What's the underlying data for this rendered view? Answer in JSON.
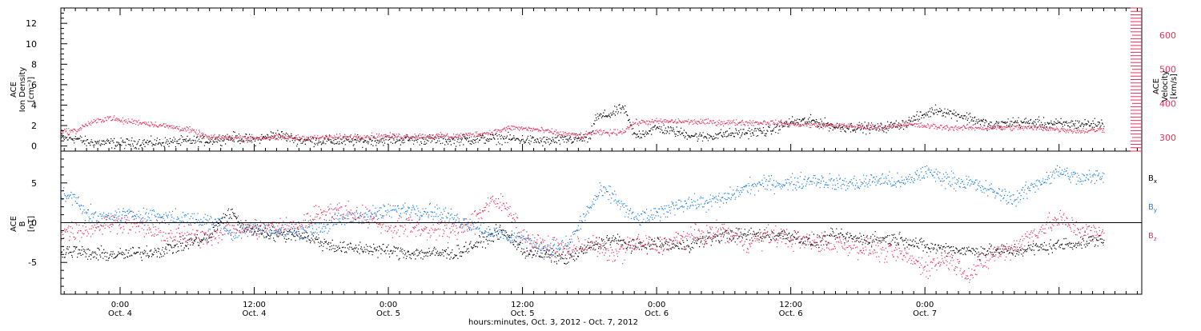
{
  "colors": {
    "black": "#000000",
    "blue": "#1f7fe0",
    "pink": "#e8325a",
    "axis": "#000000"
  },
  "chart_data": [
    {
      "type": "scatter",
      "panel": "top",
      "ylabel_left": [
        "ACE",
        "Ion Density",
        "[cm⁻³]"
      ],
      "ylabel_right": [
        "ACE",
        "Velocity",
        "[km/s]"
      ],
      "y_left_ticks": [
        0,
        2,
        4,
        6,
        8,
        10,
        12
      ],
      "y_left_tick_labels": [
        "0",
        "2",
        "4",
        "6",
        "8",
        "10",
        "12"
      ],
      "ylim_left": [
        -0.5,
        13.5
      ],
      "y_right_ticks": [
        300,
        400,
        500,
        600
      ],
      "y_right_tick_labels": [
        "300",
        "400",
        "500",
        "600"
      ],
      "ylim_right": [
        260,
        680
      ],
      "series": [
        {
          "color": "black",
          "axis": "left",
          "knots": [
            [
              -4,
              0.8
            ],
            [
              -3,
              0.4
            ],
            [
              0,
              0.3
            ],
            [
              4,
              0.4
            ],
            [
              8,
              0.6
            ],
            [
              10,
              0.9
            ],
            [
              12,
              0.6
            ],
            [
              14,
              1.2
            ],
            [
              16,
              0.6
            ],
            [
              20,
              0.5
            ],
            [
              26,
              0.7
            ],
            [
              30,
              0.6
            ],
            [
              34,
              0.8
            ],
            [
              38,
              0.5
            ],
            [
              42,
              0.8
            ],
            [
              42.5,
              2.8
            ],
            [
              44,
              3.2
            ],
            [
              45,
              3.8
            ],
            [
              46,
              1.0
            ],
            [
              48,
              1.8
            ],
            [
              52,
              0.9
            ],
            [
              54,
              1.2
            ],
            [
              58,
              1.5
            ],
            [
              60,
              2.4
            ],
            [
              62,
              2.5
            ],
            [
              64,
              1.9
            ],
            [
              68,
              1.8
            ],
            [
              70,
              2.2
            ],
            [
              73,
              3.6
            ],
            [
              76,
              2.8
            ],
            [
              78,
              2.0
            ],
            [
              80,
              2.4
            ],
            [
              84,
              2.2
            ],
            [
              88,
              2.2
            ]
          ],
          "spread": 0.35
        },
        {
          "color": "pink",
          "axis": "right",
          "knots": [
            [
              -4,
              320
            ],
            [
              -3,
              340
            ],
            [
              -1,
              360
            ],
            [
              0,
              350
            ],
            [
              2,
              345
            ],
            [
              4,
              335
            ],
            [
              6,
              325
            ],
            [
              8,
              300
            ],
            [
              10,
              300
            ],
            [
              14,
              300
            ],
            [
              18,
              300
            ],
            [
              22,
              305
            ],
            [
              26,
              305
            ],
            [
              30,
              305
            ],
            [
              33,
              315
            ],
            [
              35,
              330
            ],
            [
              37,
              325
            ],
            [
              40,
              310
            ],
            [
              41.5,
              305
            ],
            [
              42,
              315
            ],
            [
              44,
              315
            ],
            [
              45,
              320
            ],
            [
              46,
              345
            ],
            [
              48,
              348
            ],
            [
              50,
              348
            ],
            [
              54,
              345
            ],
            [
              58,
              345
            ],
            [
              60,
              340
            ],
            [
              64,
              335
            ],
            [
              68,
              330
            ],
            [
              70,
              340
            ],
            [
              74,
              330
            ],
            [
              78,
              330
            ],
            [
              82,
              330
            ],
            [
              86,
              320
            ],
            [
              88,
              325
            ]
          ],
          "spread": 6
        }
      ]
    },
    {
      "type": "scatter",
      "panel": "bottom",
      "ylabel_left": [
        "ACE",
        "B",
        "[nT]"
      ],
      "y_left_ticks": [
        -5,
        0,
        5
      ],
      "y_left_tick_labels": [
        "-5",
        "0",
        "5"
      ],
      "ylim_left": [
        -9,
        9
      ],
      "zero_line": true,
      "legend": [
        {
          "label": "B",
          "sub": "x",
          "color": "black"
        },
        {
          "label": "B",
          "sub": "y",
          "color": "blue"
        },
        {
          "label": "B",
          "sub": "z",
          "color": "pink"
        }
      ],
      "series": [
        {
          "color": "black",
          "name": "Bx",
          "knots": [
            [
              -4,
              -3.5
            ],
            [
              -3,
              -3.9
            ],
            [
              0,
              -4.0
            ],
            [
              4,
              -3.4
            ],
            [
              6,
              -2.5
            ],
            [
              8,
              -1.8
            ],
            [
              9,
              0.5
            ],
            [
              10,
              1.2
            ],
            [
              11,
              -0.5
            ],
            [
              12,
              -0.8
            ],
            [
              14,
              -1.5
            ],
            [
              16,
              -1.3
            ],
            [
              18,
              -2.5
            ],
            [
              20,
              -3.2
            ],
            [
              22,
              -3.2
            ],
            [
              26,
              -3.8
            ],
            [
              30,
              -3.8
            ],
            [
              32,
              -2.5
            ],
            [
              34,
              -1.0
            ],
            [
              35,
              -2.0
            ],
            [
              36,
              -3.5
            ],
            [
              38,
              -4.0
            ],
            [
              40,
              -4.5
            ],
            [
              42,
              -3.0
            ],
            [
              44,
              -2.0
            ],
            [
              46,
              -3.0
            ],
            [
              48,
              -2.5
            ],
            [
              50,
              -3.0
            ],
            [
              54,
              -1.5
            ],
            [
              58,
              -1.5
            ],
            [
              60,
              -1.5
            ],
            [
              62,
              -2.5
            ],
            [
              64,
              -1.5
            ],
            [
              66,
              -2.0
            ],
            [
              68,
              -2.0
            ],
            [
              70,
              -2.0
            ],
            [
              72,
              -3.0
            ],
            [
              76,
              -3.5
            ],
            [
              80,
              -3.5
            ],
            [
              84,
              -2.8
            ],
            [
              88,
              -2.0
            ]
          ],
          "spread": 0.6
        },
        {
          "color": "blue",
          "name": "By",
          "knots": [
            [
              -4,
              3.3
            ],
            [
              -3,
              1.2
            ],
            [
              -2,
              0.5
            ],
            [
              0,
              1.0
            ],
            [
              2,
              1.0
            ],
            [
              4,
              0.8
            ],
            [
              6,
              0.5
            ],
            [
              8,
              0.2
            ],
            [
              9,
              0.0
            ],
            [
              10,
              -1.5
            ],
            [
              12,
              -0.5
            ],
            [
              14,
              -1.0
            ],
            [
              16,
              -1.0
            ],
            [
              18,
              -0.5
            ],
            [
              20,
              0.5
            ],
            [
              22,
              1.0
            ],
            [
              24,
              1.5
            ],
            [
              26,
              1.8
            ],
            [
              28,
              1.5
            ],
            [
              30,
              0.5
            ],
            [
              32,
              -0.5
            ],
            [
              34,
              -1.5
            ],
            [
              36,
              -2.0
            ],
            [
              38,
              -3.0
            ],
            [
              40,
              -2.8
            ],
            [
              42,
              2.0
            ],
            [
              43,
              4.0
            ],
            [
              44,
              3.5
            ],
            [
              46,
              0.5
            ],
            [
              48,
              1.0
            ],
            [
              50,
              2.5
            ],
            [
              52,
              2.5
            ],
            [
              54,
              3.0
            ],
            [
              56,
              4.5
            ],
            [
              58,
              5.0
            ],
            [
              60,
              5.0
            ],
            [
              62,
              5.5
            ],
            [
              64,
              5.0
            ],
            [
              66,
              5.0
            ],
            [
              68,
              5.5
            ],
            [
              70,
              5.0
            ],
            [
              72,
              6.5
            ],
            [
              74,
              5.5
            ],
            [
              76,
              5.0
            ],
            [
              78,
              4.0
            ],
            [
              80,
              3.0
            ],
            [
              82,
              5.0
            ],
            [
              84,
              6.5
            ],
            [
              86,
              5.5
            ],
            [
              88,
              6.0
            ]
          ],
          "spread": 0.7
        },
        {
          "color": "pink",
          "name": "Bz",
          "knots": [
            [
              -4,
              -1.0
            ],
            [
              -2,
              -0.3
            ],
            [
              0,
              0.3
            ],
            [
              2,
              -0.5
            ],
            [
              4,
              -1.5
            ],
            [
              6,
              -1.8
            ],
            [
              8,
              -1.5
            ],
            [
              10,
              -0.5
            ],
            [
              12,
              -0.8
            ],
            [
              14,
              -0.5
            ],
            [
              16,
              -0.3
            ],
            [
              18,
              1.5
            ],
            [
              20,
              1.5
            ],
            [
              22,
              0.8
            ],
            [
              24,
              -0.5
            ],
            [
              26,
              -0.5
            ],
            [
              28,
              -0.8
            ],
            [
              30,
              -1.0
            ],
            [
              32,
              1.0
            ],
            [
              33,
              2.5
            ],
            [
              34,
              2.5
            ],
            [
              35,
              1.5
            ],
            [
              36,
              -2.0
            ],
            [
              38,
              -3.0
            ],
            [
              40,
              -3.5
            ],
            [
              42,
              -2.5
            ],
            [
              44,
              -4.0
            ],
            [
              46,
              -2.5
            ],
            [
              48,
              -3.0
            ],
            [
              50,
              -2.0
            ],
            [
              52,
              -1.5
            ],
            [
              54,
              -1.0
            ],
            [
              56,
              -2.5
            ],
            [
              58,
              -1.5
            ],
            [
              60,
              -2.0
            ],
            [
              62,
              -2.5
            ],
            [
              64,
              -2.5
            ],
            [
              66,
              -3.0
            ],
            [
              68,
              -3.5
            ],
            [
              70,
              -4.0
            ],
            [
              72,
              -5.5
            ],
            [
              74,
              -4.5
            ],
            [
              76,
              -6.5
            ],
            [
              78,
              -4.0
            ],
            [
              80,
              -3.0
            ],
            [
              82,
              -1.0
            ],
            [
              84,
              0.5
            ],
            [
              86,
              -1.0
            ],
            [
              88,
              -1.5
            ]
          ],
          "spread": 0.9
        }
      ]
    }
  ],
  "x_axis": {
    "xlim": [
      -5.3,
      91.4
    ],
    "data_end": 88,
    "major_ticks": [
      0,
      12,
      24,
      36,
      48,
      60,
      72,
      84
    ],
    "tick_labels": [
      [
        "0:00",
        "Oct. 4"
      ],
      [
        "12:00",
        "Oct. 4"
      ],
      [
        "0:00",
        "Oct. 5"
      ],
      [
        "12:00",
        "Oct. 5"
      ],
      [
        "0:00",
        "Oct. 6"
      ],
      [
        "12:00",
        "Oct. 6"
      ],
      [
        "0:00",
        "Oct. 7"
      ]
    ],
    "labeled_ticks": [
      0,
      12,
      24,
      36,
      48,
      60,
      72
    ],
    "xlabel": "hours:minutes, Oct.  3, 2012 - Oct.  7, 2012"
  }
}
